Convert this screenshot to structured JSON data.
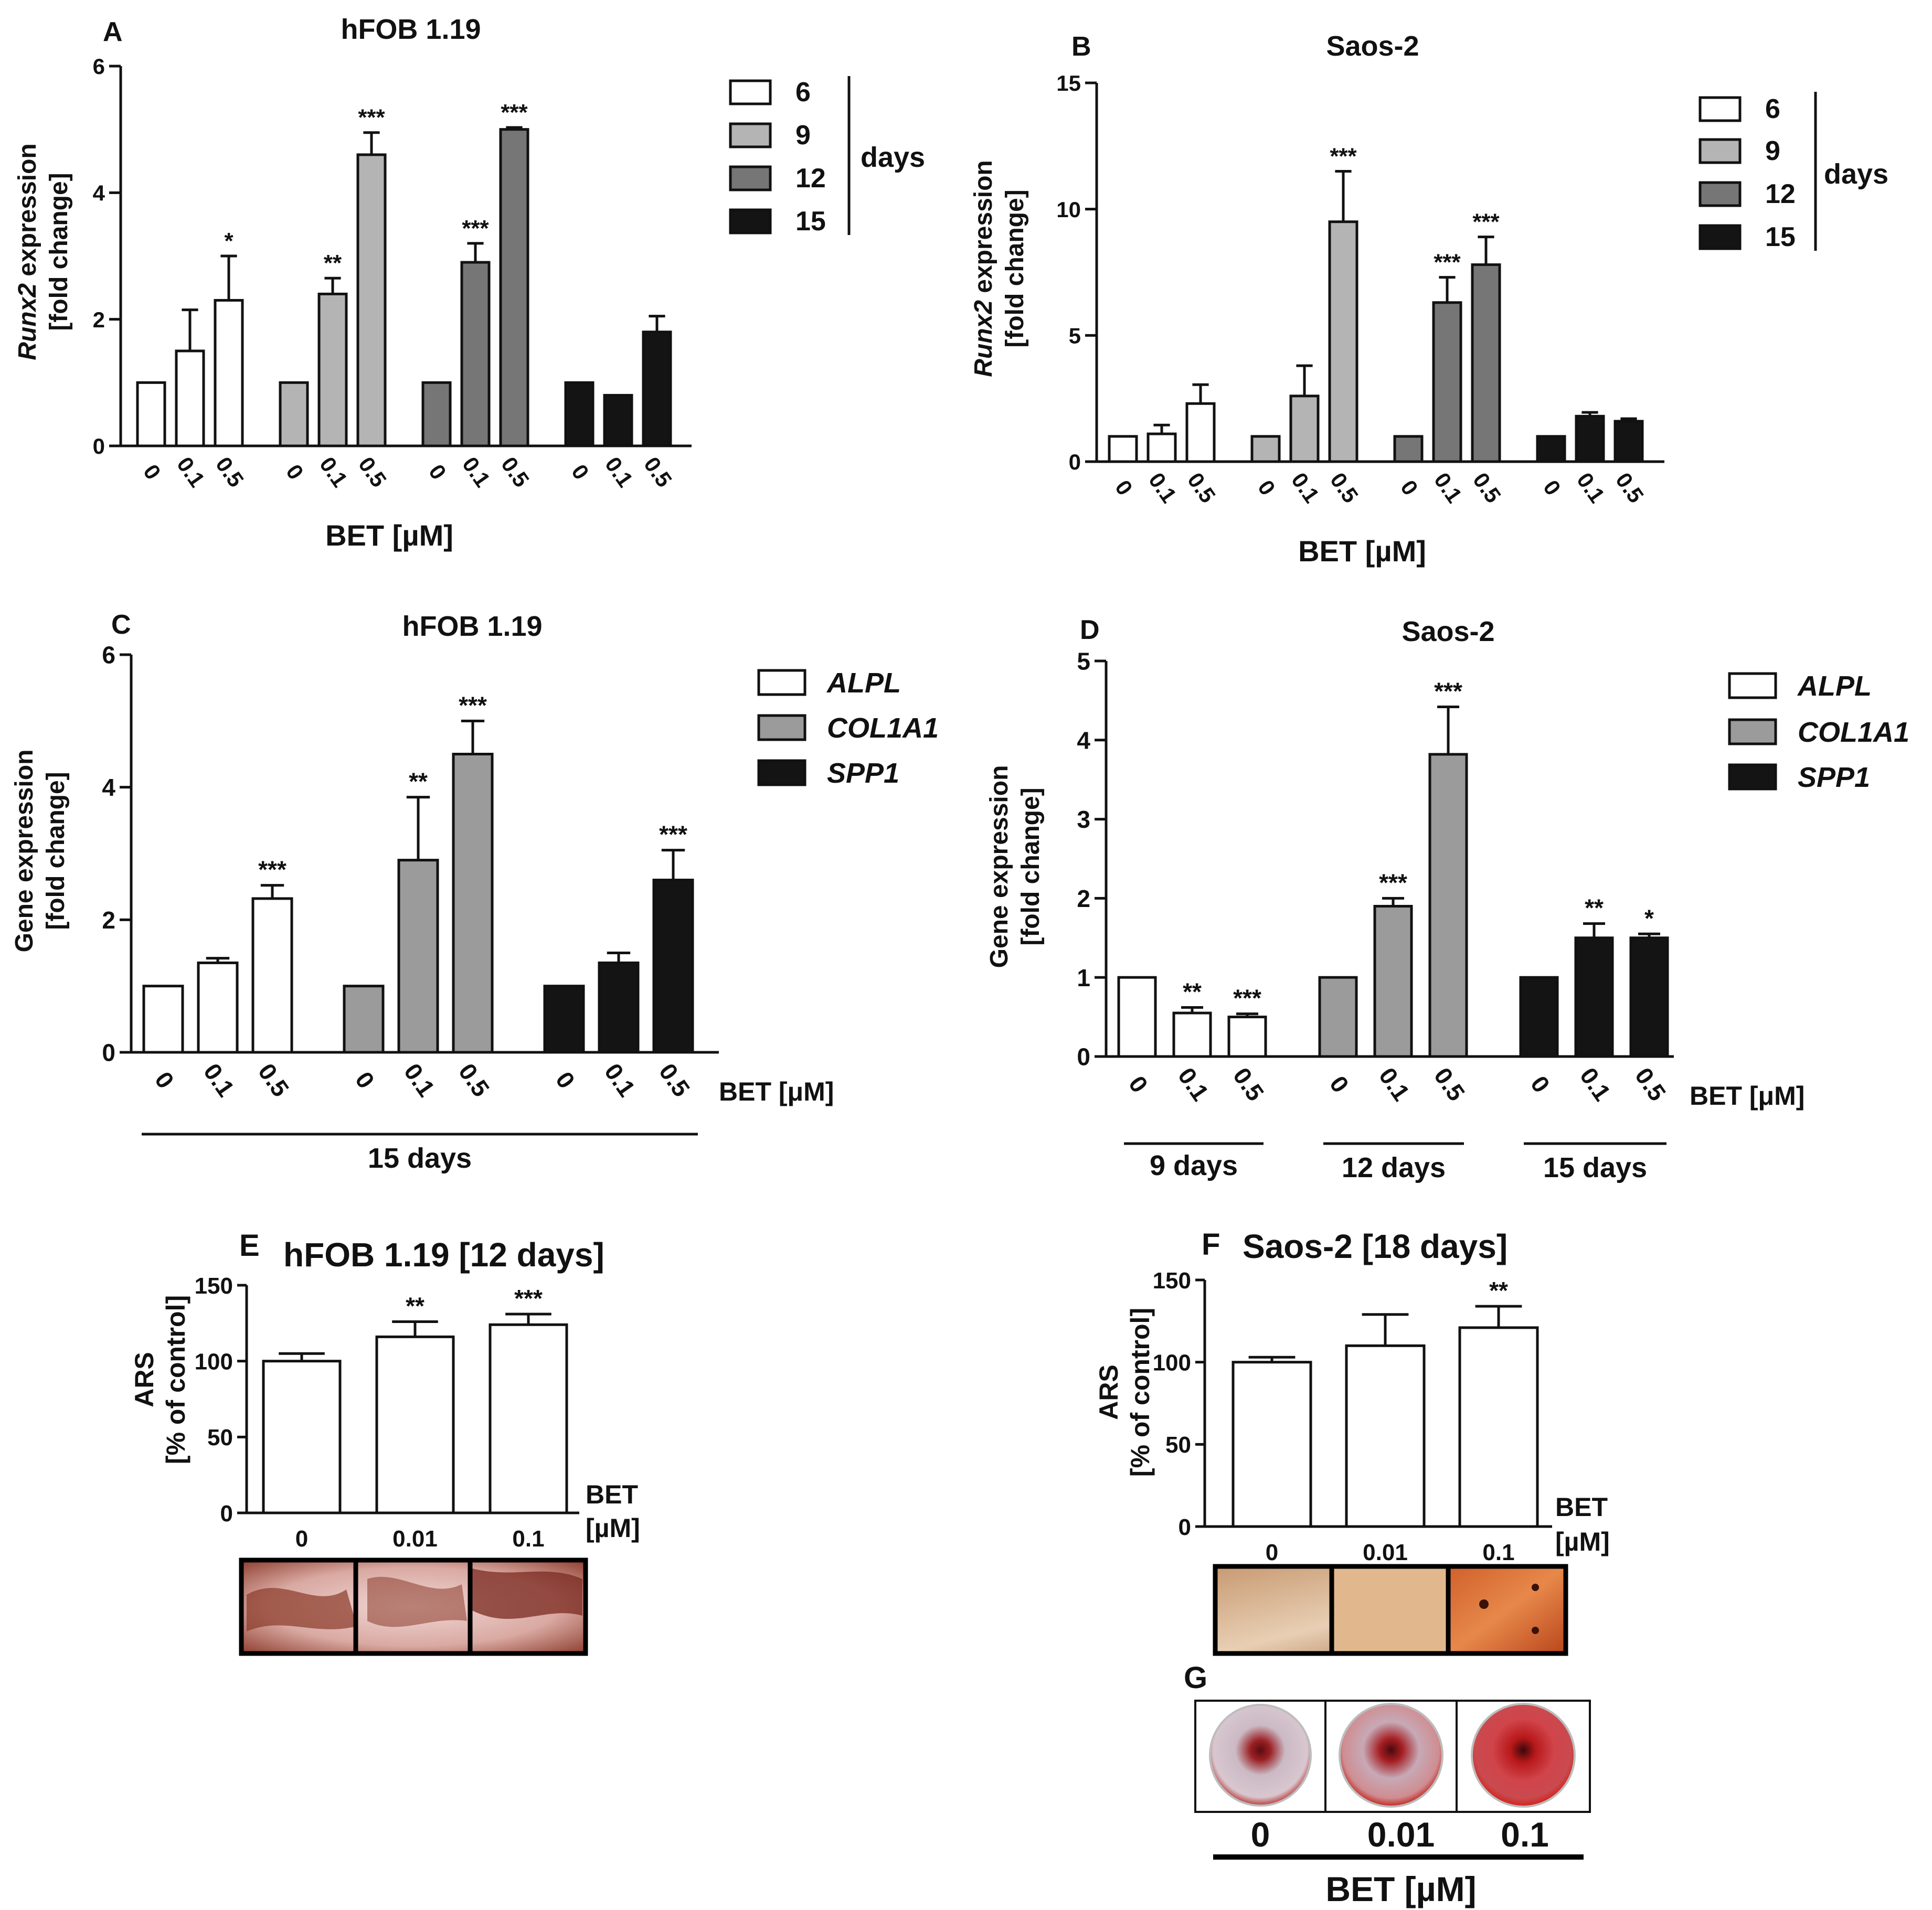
{
  "chart_data": [
    {
      "panel": "A",
      "type": "bar",
      "title": "hFOB 1.19",
      "ylabel_italic": "Runx2",
      "ylabel_rest": " expression",
      "ylabel2": "[fold change]",
      "xlabel": "BET [µM]",
      "ylim": [
        0,
        6
      ],
      "yticks": [
        "0",
        "2",
        "4",
        "6"
      ],
      "doses": [
        "0",
        "0.1",
        "0.5"
      ],
      "series": [
        {
          "name": "6",
          "color": "#ffffff",
          "values": [
            1.0,
            1.5,
            2.3
          ],
          "errors": [
            0.0,
            0.65,
            0.7
          ],
          "stars": [
            "",
            "",
            "*"
          ]
        },
        {
          "name": "9",
          "color": "#b4b4b4",
          "values": [
            1.0,
            2.4,
            4.6
          ],
          "errors": [
            0.0,
            0.25,
            0.35
          ],
          "stars": [
            "",
            "**",
            "***"
          ]
        },
        {
          "name": "12",
          "color": "#767676",
          "values": [
            1.0,
            2.9,
            5.0
          ],
          "errors": [
            0.0,
            0.3,
            0.03
          ],
          "stars": [
            "",
            "***",
            "***"
          ]
        },
        {
          "name": "15",
          "color": "#141414",
          "values": [
            1.0,
            0.8,
            1.8
          ],
          "errors": [
            0.0,
            0.0,
            0.25
          ],
          "stars": [
            "",
            "",
            ""
          ]
        }
      ],
      "legend": [
        "6",
        "9",
        "12",
        "15"
      ],
      "legend_group": "days"
    },
    {
      "panel": "B",
      "type": "bar",
      "title": "Saos-2",
      "ylabel_italic": "Runx2",
      "ylabel_rest": " expression",
      "ylabel2": "[fold change]",
      "xlabel": "BET [µM]",
      "ylim": [
        0,
        15
      ],
      "yticks": [
        "0",
        "5",
        "10",
        "15"
      ],
      "doses": [
        "0",
        "0.1",
        "0.5"
      ],
      "series": [
        {
          "name": "6",
          "color": "#ffffff",
          "values": [
            1.0,
            1.1,
            2.3
          ],
          "errors": [
            0.0,
            0.35,
            0.75
          ],
          "stars": [
            "",
            "",
            ""
          ]
        },
        {
          "name": "9",
          "color": "#b4b4b4",
          "values": [
            1.0,
            2.6,
            9.5
          ],
          "errors": [
            0.0,
            1.2,
            2.0
          ],
          "stars": [
            "",
            "",
            "***"
          ]
        },
        {
          "name": "12",
          "color": "#767676",
          "values": [
            1.0,
            6.3,
            7.8
          ],
          "errors": [
            0.0,
            1.0,
            1.1
          ],
          "stars": [
            "",
            "***",
            "***"
          ]
        },
        {
          "name": "15",
          "color": "#141414",
          "values": [
            1.0,
            1.8,
            1.6
          ],
          "errors": [
            0.0,
            0.15,
            0.1
          ],
          "stars": [
            "",
            "",
            ""
          ]
        }
      ],
      "legend": [
        "6",
        "9",
        "12",
        "15"
      ],
      "legend_group": "days"
    },
    {
      "panel": "C",
      "type": "bar",
      "title": "hFOB 1.19",
      "ylabel": "Gene expression",
      "ylabel2": "[fold change]",
      "xlabel": "BET [μM]",
      "ylim": [
        0,
        6
      ],
      "yticks": [
        "0",
        "2",
        "4",
        "6"
      ],
      "doses": [
        "0",
        "0.1",
        "0.5"
      ],
      "series": [
        {
          "name": "ALPL",
          "color": "#ffffff",
          "values": [
            1.0,
            1.35,
            2.32
          ],
          "errors": [
            0.0,
            0.07,
            0.2
          ],
          "stars": [
            "",
            "",
            "***"
          ]
        },
        {
          "name": "COL1A1",
          "color": "#9b9b9b",
          "values": [
            1.0,
            2.9,
            4.5
          ],
          "errors": [
            0.0,
            0.95,
            0.5
          ],
          "stars": [
            "",
            "**",
            "***"
          ]
        },
        {
          "name": "SPP1",
          "color": "#141414",
          "values": [
            1.0,
            1.35,
            2.6
          ],
          "errors": [
            0.0,
            0.15,
            0.45
          ],
          "stars": [
            "",
            "",
            "***"
          ]
        }
      ],
      "group_labels": [
        "15 days"
      ],
      "legend": [
        "ALPL",
        "COL1A1",
        "SPP1"
      ]
    },
    {
      "panel": "D",
      "type": "bar",
      "title": "Saos-2",
      "ylabel": "Gene expression",
      "ylabel2": "[fold change]",
      "xlabel": "BET [μM]",
      "ylim": [
        0,
        5
      ],
      "yticks": [
        "0",
        "1",
        "2",
        "3",
        "4",
        "5"
      ],
      "doses": [
        "0",
        "0.1",
        "0.5"
      ],
      "series": [
        {
          "name": "ALPL",
          "color": "#ffffff",
          "values": [
            1.0,
            0.55,
            0.5
          ],
          "errors": [
            0.0,
            0.07,
            0.04
          ],
          "stars": [
            "",
            "**",
            "***"
          ]
        },
        {
          "name": "COL1A1",
          "color": "#9b9b9b",
          "values": [
            1.0,
            1.9,
            3.82
          ],
          "errors": [
            0.0,
            0.1,
            0.6
          ],
          "stars": [
            "",
            "***",
            "***"
          ]
        },
        {
          "name": "SPP1",
          "color": "#141414",
          "values": [
            1.0,
            1.5,
            1.5
          ],
          "errors": [
            0.0,
            0.18,
            0.05
          ],
          "stars": [
            "",
            "**",
            "*"
          ]
        }
      ],
      "group_labels": [
        "9 days",
        "12 days",
        "15 days"
      ],
      "legend": [
        "ALPL",
        "COL1A1",
        "SPP1"
      ]
    },
    {
      "panel": "E",
      "type": "bar",
      "title": "hFOB 1.19 [12 days]",
      "ylabel": "ARS",
      "ylabel2": "[% of control]",
      "xlabel1": "BET",
      "xlabel2": "[µM]",
      "ylim": [
        0,
        150
      ],
      "yticks": [
        "0",
        "50",
        "100",
        "150"
      ],
      "categories": [
        "0",
        "0.01",
        "0.1"
      ],
      "values": [
        100,
        116,
        124
      ],
      "errors": [
        5,
        10,
        7
      ],
      "stars": [
        "",
        "**",
        "***"
      ]
    },
    {
      "panel": "F",
      "type": "bar",
      "title": "Saos-2 [18 days]",
      "ylabel": "ARS",
      "ylabel2": "[% of control]",
      "xlabel1": "BET",
      "xlabel2": "[µM]",
      "ylim": [
        0,
        150
      ],
      "yticks": [
        "0",
        "50",
        "100",
        "150"
      ],
      "categories": [
        "0",
        "0.01",
        "0.1"
      ],
      "values": [
        100,
        110,
        121
      ],
      "errors": [
        3,
        19,
        13
      ],
      "stars": [
        "",
        "",
        "**"
      ]
    }
  ],
  "panel_g": {
    "label": "G",
    "doses": [
      "0",
      "0.01",
      "0.1"
    ],
    "xlabel": "BET [µM]"
  }
}
